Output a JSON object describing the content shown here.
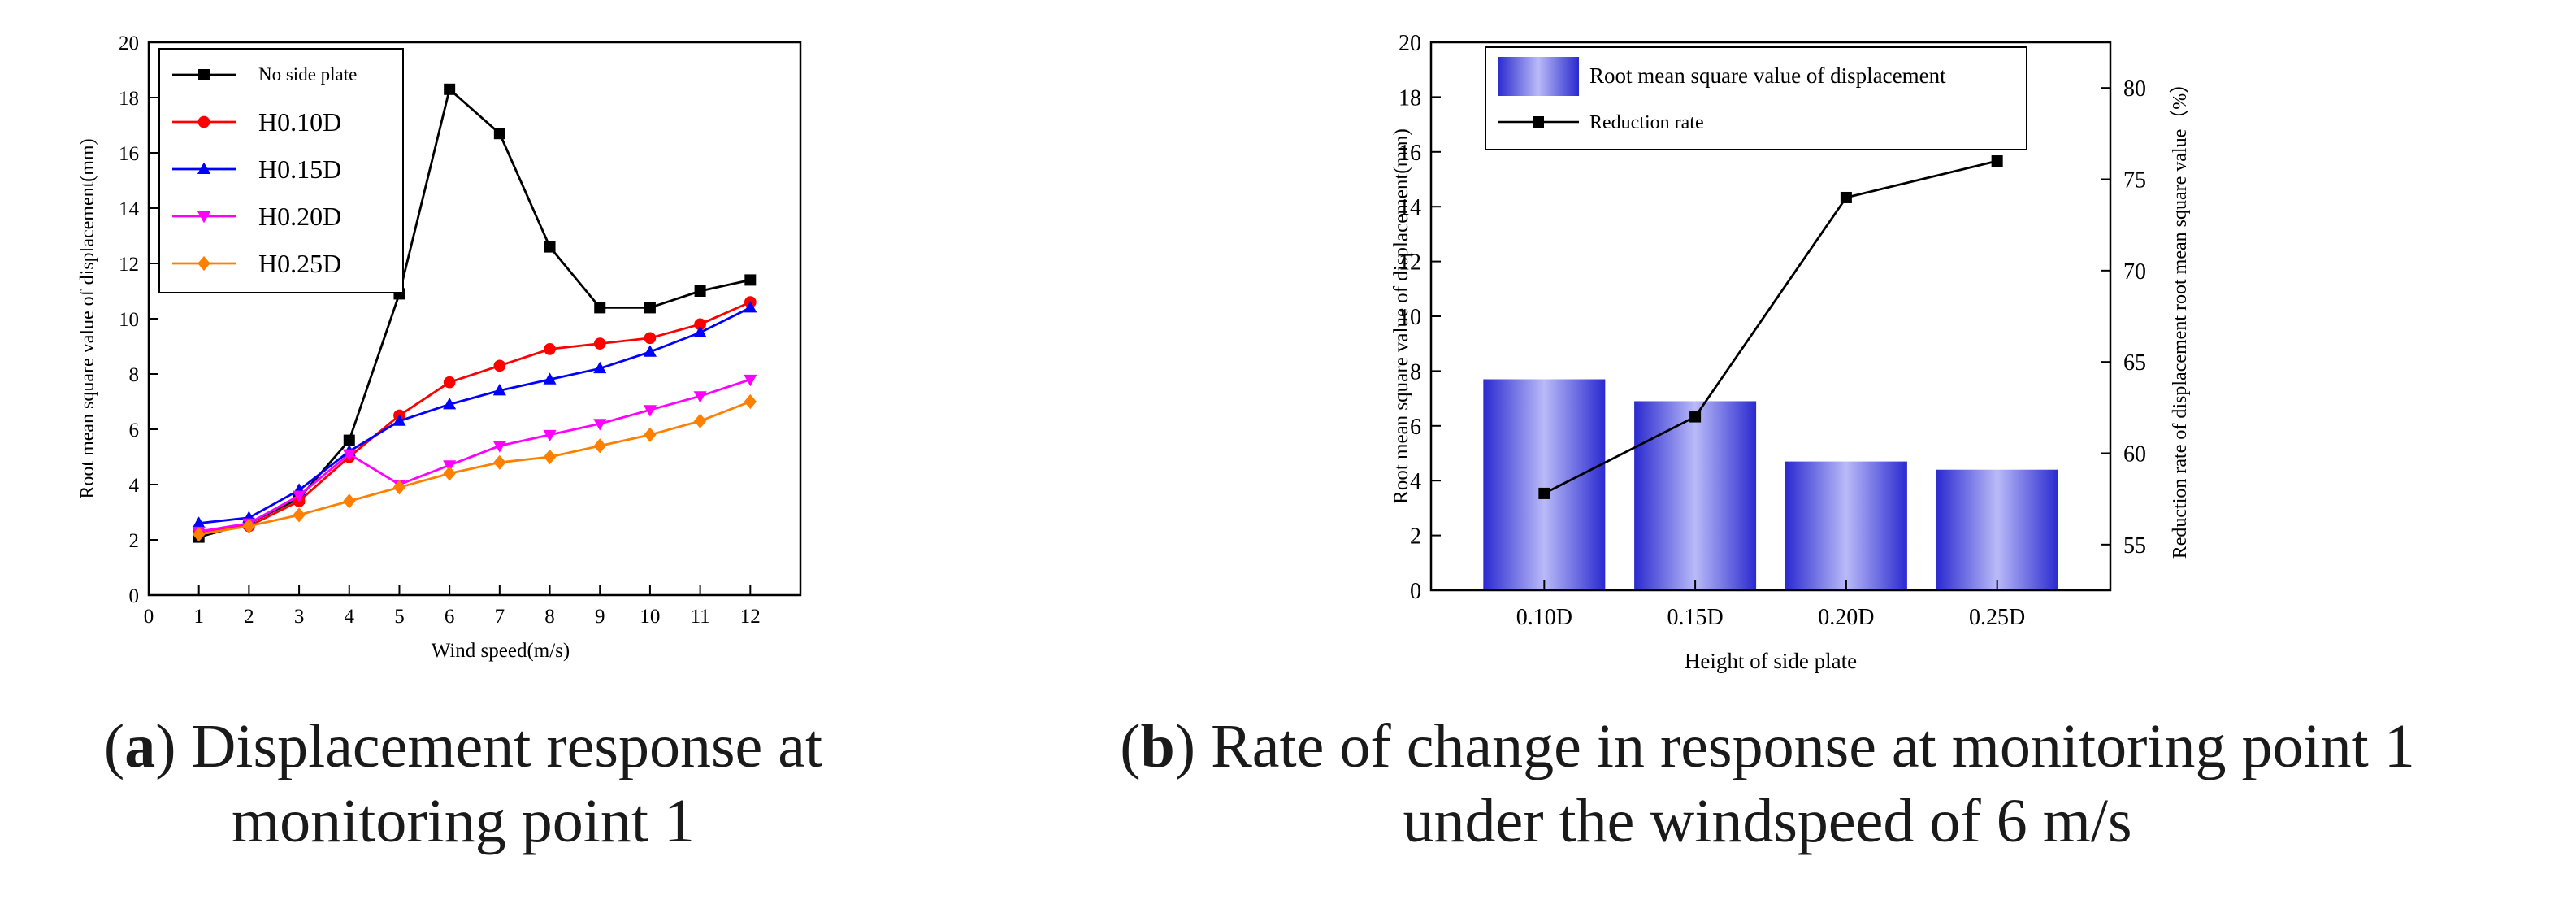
{
  "chart_data": [
    {
      "type": "line",
      "panel_tag": "a",
      "caption": "Displacement response at monitoring point 1",
      "caption_lines": [
        "Displacement response at",
        "monitoring point 1"
      ],
      "xlabel": "Wind speed(m/s)",
      "ylabel": "Root mean square value of displacement(mm)",
      "xlim": [
        0,
        13
      ],
      "ylim": [
        0,
        20
      ],
      "x_ticks": [
        0,
        1,
        2,
        3,
        4,
        5,
        6,
        7,
        8,
        9,
        10,
        11,
        12
      ],
      "y_ticks": [
        0,
        2,
        4,
        6,
        8,
        10,
        12,
        14,
        16,
        18,
        20
      ],
      "grid": false,
      "legend_position": "top-left",
      "x": [
        1,
        2,
        3,
        4,
        5,
        6,
        7,
        8,
        9,
        10,
        11,
        12
      ],
      "series": [
        {
          "name": "No side plate",
          "color": "#000000",
          "marker": "square",
          "values": [
            2.1,
            2.6,
            3.5,
            5.6,
            10.9,
            18.3,
            16.7,
            12.6,
            10.4,
            10.4,
            11.0,
            11.4
          ]
        },
        {
          "name": "H0.10D",
          "color": "#ff0000",
          "marker": "circle",
          "values": [
            2.3,
            2.5,
            3.4,
            5.0,
            6.5,
            7.7,
            8.3,
            8.9,
            9.1,
            9.3,
            9.8,
            10.6
          ]
        },
        {
          "name": "H0.15D",
          "color": "#0000ff",
          "marker": "triangle-up",
          "values": [
            2.6,
            2.8,
            3.8,
            5.2,
            6.3,
            6.9,
            7.4,
            7.8,
            8.2,
            8.8,
            9.5,
            10.4
          ]
        },
        {
          "name": "H0.20D",
          "color": "#ff00ff",
          "marker": "triangle-down",
          "values": [
            2.3,
            2.6,
            3.6,
            5.1,
            4.0,
            4.7,
            5.4,
            5.8,
            6.2,
            6.7,
            7.2,
            7.8
          ]
        },
        {
          "name": "H0.25D",
          "color": "#ff8000",
          "marker": "diamond",
          "values": [
            2.2,
            2.5,
            2.9,
            3.4,
            3.9,
            4.4,
            4.8,
            5.0,
            5.4,
            5.8,
            6.3,
            7.0
          ]
        }
      ]
    },
    {
      "type": "bar",
      "panel_tag": "b",
      "caption": "Rate of change in response at monitoring point 1 under the windspeed of 6 m/s",
      "caption_lines": [
        "Rate of change in response at monitoring point 1",
        "under the windspeed of 6 m/s"
      ],
      "xlabel": "Height of side plate",
      "ylabel": "Root mean square value of displacement(mm)",
      "y2label": "Reduction rate of displacement root mean square value（%）",
      "categories": [
        "0.10D",
        "0.15D",
        "0.20D",
        "0.25D"
      ],
      "ylim": [
        0,
        20
      ],
      "y_ticks": [
        0,
        2,
        4,
        6,
        8,
        10,
        12,
        14,
        16,
        18,
        20
      ],
      "y2lim": [
        52.5,
        82.5
      ],
      "y2_ticks": [
        55,
        60,
        65,
        70,
        75,
        80
      ],
      "grid": false,
      "legend_position": "top",
      "series": [
        {
          "name": "Root mean square value of displacement",
          "type": "bar",
          "axis": "left",
          "color": "#3b3bd6",
          "values": [
            7.7,
            6.9,
            4.7,
            4.4
          ]
        },
        {
          "name": "Reduction rate",
          "type": "line",
          "axis": "right",
          "marker": "square",
          "color": "#000000",
          "values": [
            57.8,
            62.0,
            74.0,
            76.0
          ]
        }
      ]
    }
  ]
}
